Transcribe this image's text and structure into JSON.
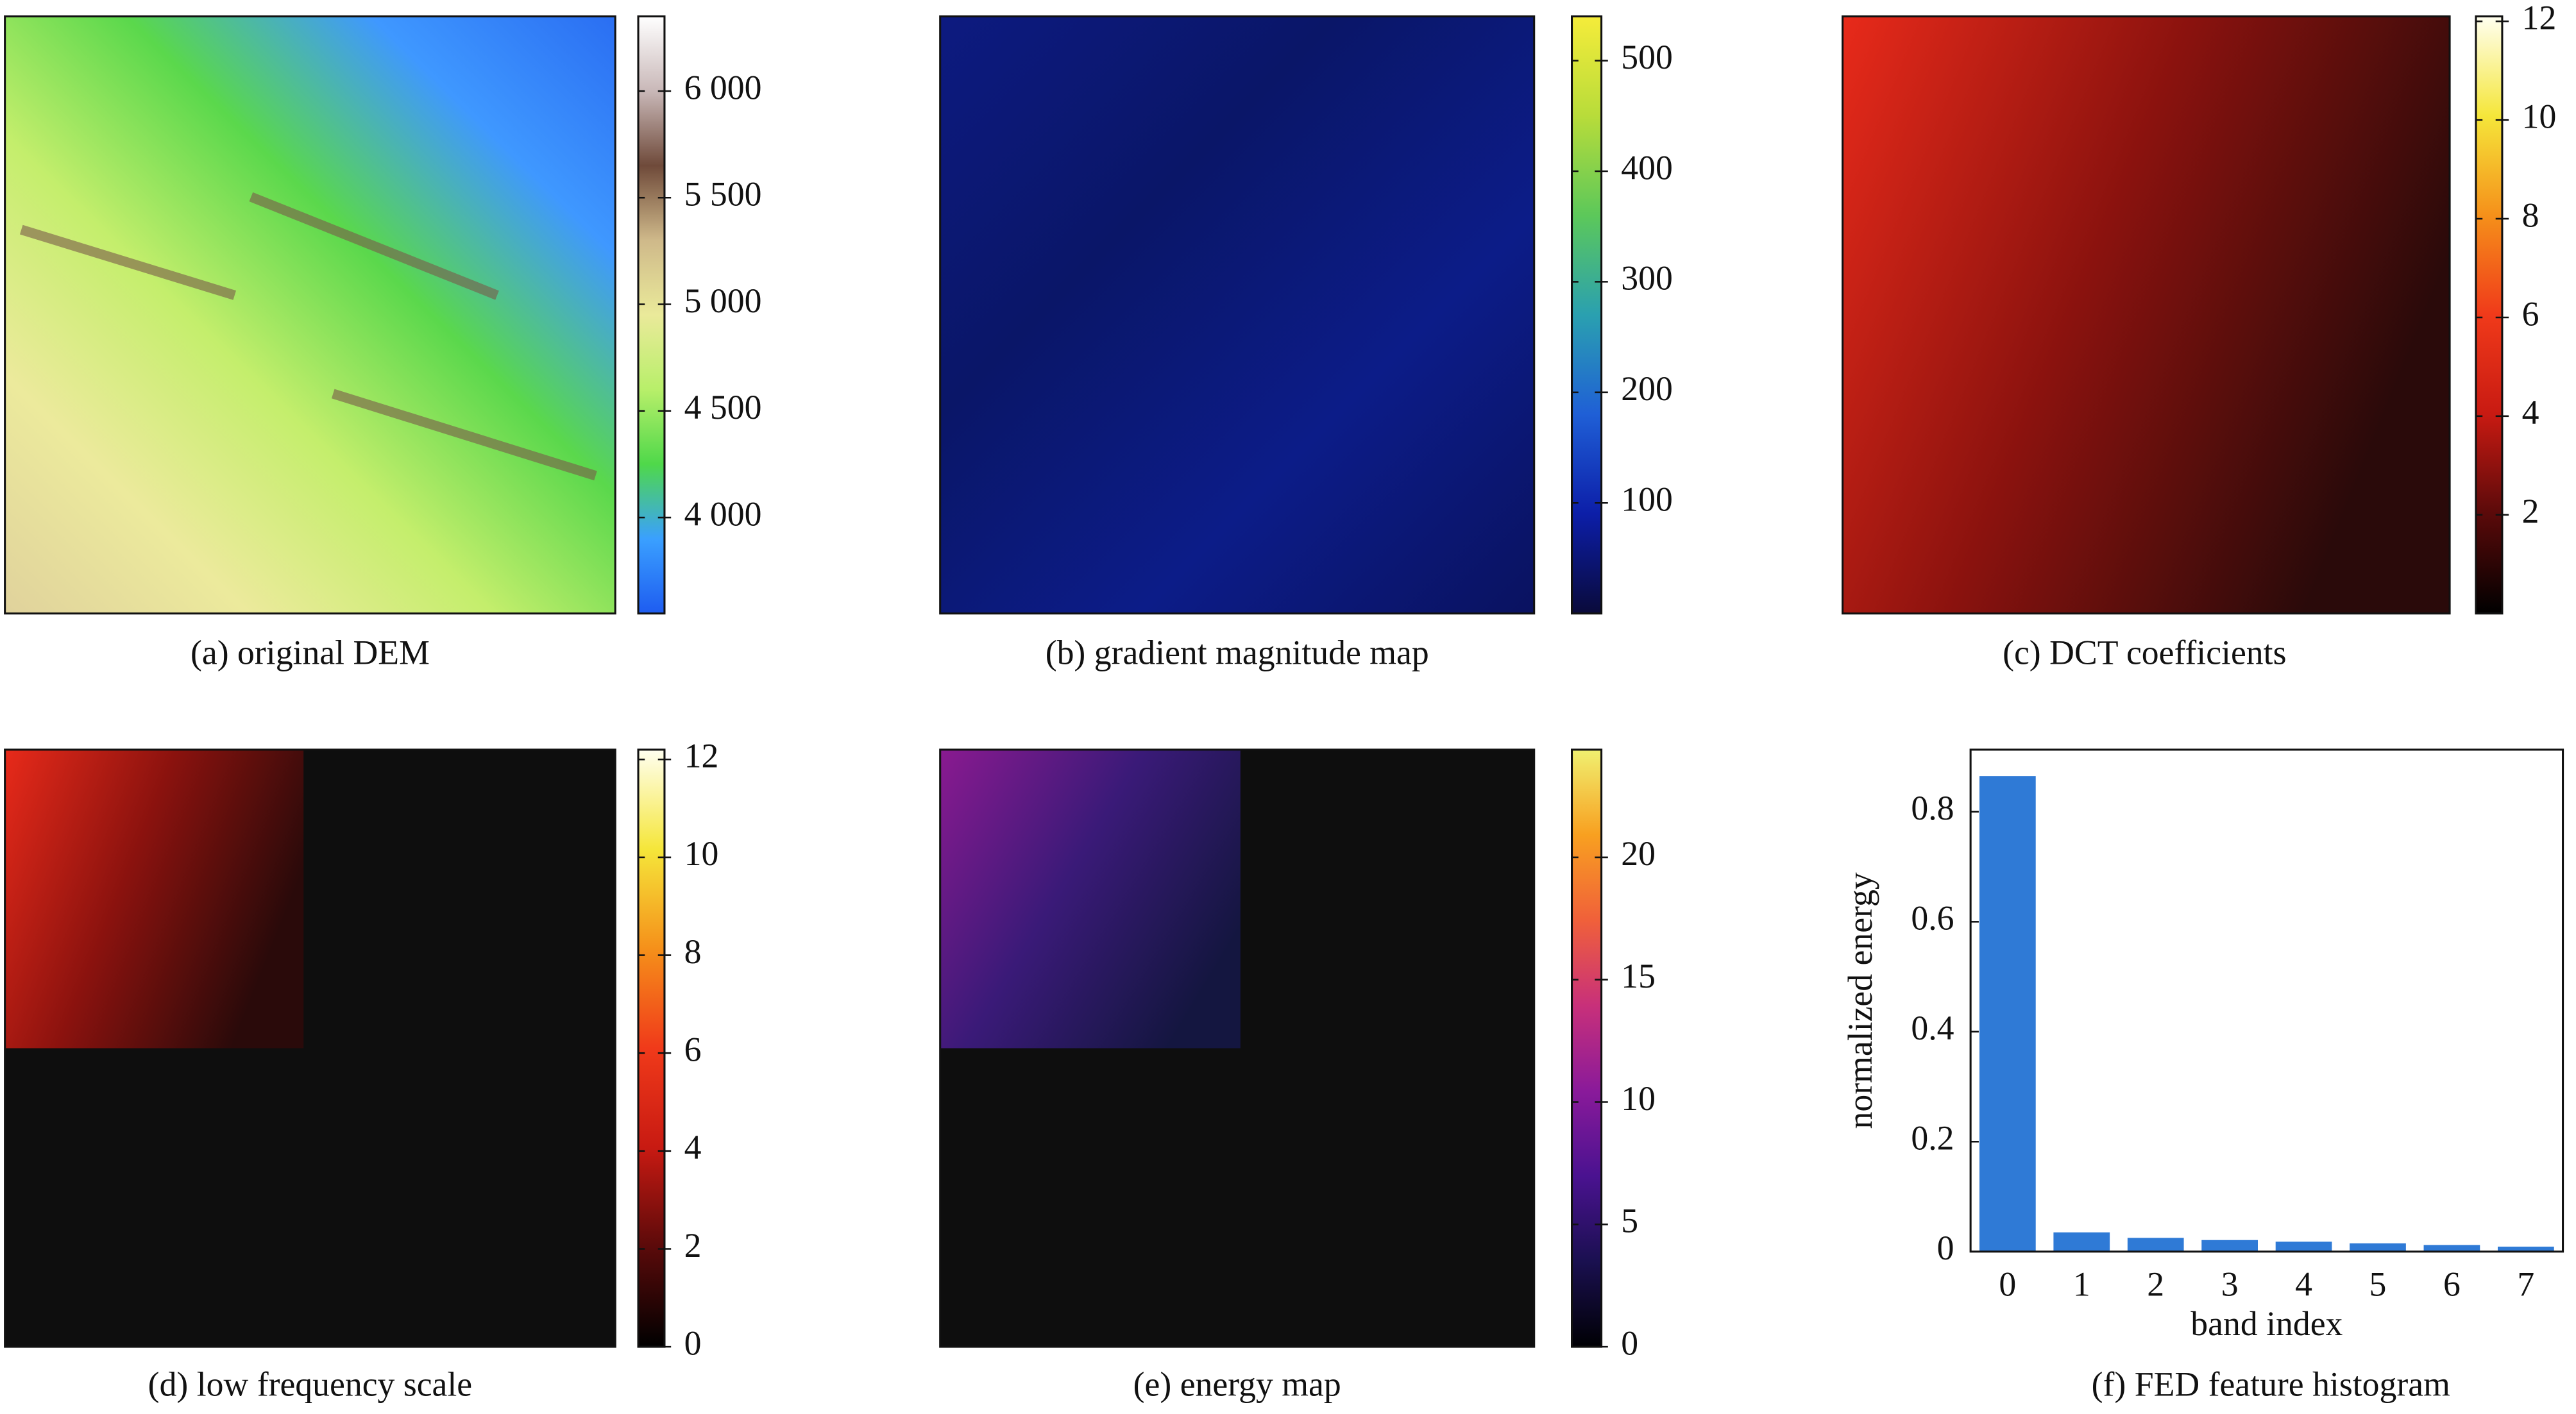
{
  "chart_data": [
    {
      "type": "image",
      "caption": "(a) original DEM",
      "colormap": [
        "#1e5cf0",
        "#3aa0ff",
        "#4fd84a",
        "#b8ef6a",
        "#eaea9a",
        "#cfb98a",
        "#6f4a3a",
        "#c9b8b8",
        "#ffffff"
      ],
      "ylim": [
        3550,
        6350
      ],
      "yticks": [
        {
          "value": 4000,
          "label": "4 000"
        },
        {
          "value": 4500,
          "label": "4 500"
        },
        {
          "value": 5000,
          "label": "5 000"
        },
        {
          "value": 5500,
          "label": "5 500"
        },
        {
          "value": 6000,
          "label": "6 000"
        }
      ]
    },
    {
      "type": "image",
      "caption": "(b) gradient magnitude map",
      "colormap": [
        "#0a0a3a",
        "#0c1ea8",
        "#1f5fd6",
        "#2aa0b0",
        "#5cc85a",
        "#b8dc3a",
        "#f5ec3a"
      ],
      "ylim": [
        0,
        540
      ],
      "yticks": [
        100,
        200,
        300,
        400,
        500
      ]
    },
    {
      "type": "image",
      "caption": "(c) DCT coefficients",
      "colormap": [
        "#000000",
        "#5a0a0a",
        "#c81a12",
        "#f03a1a",
        "#f5901a",
        "#f5e63a",
        "#fffff0"
      ],
      "ylim": [
        0,
        12.1
      ],
      "yticks": [
        2,
        4,
        6,
        8,
        10,
        12
      ]
    },
    {
      "type": "image",
      "caption": "(d) low frequency scale",
      "colormap": [
        "#000000",
        "#5a0a0a",
        "#c81a12",
        "#f03a1a",
        "#f5901a",
        "#f5e63a",
        "#fffff0"
      ],
      "ylim": [
        0,
        12.2
      ],
      "yticks": [
        0,
        2,
        4,
        6,
        8,
        10,
        12
      ]
    },
    {
      "type": "image",
      "caption": "(e) energy map",
      "colormap": [
        "#000004",
        "#1a1050",
        "#4a1290",
        "#8a1a9a",
        "#c8307a",
        "#f0603a",
        "#f8a020",
        "#f0f070"
      ],
      "ylim": [
        0,
        24.4
      ],
      "yticks": [
        0,
        5,
        10,
        15,
        20
      ]
    },
    {
      "type": "bar",
      "caption": "(f) FED feature histogram",
      "xlabel": "band index",
      "ylabel": "normalized energy",
      "categories": [
        "0",
        "1",
        "2",
        "3",
        "4",
        "5",
        "6",
        "7"
      ],
      "values": [
        0.865,
        0.035,
        0.025,
        0.021,
        0.018,
        0.015,
        0.012,
        0.009
      ],
      "color": "#2f7ad6",
      "ylim": [
        0,
        0.913
      ],
      "yticks": [
        0,
        0.2,
        0.4,
        0.6,
        0.8
      ]
    }
  ]
}
